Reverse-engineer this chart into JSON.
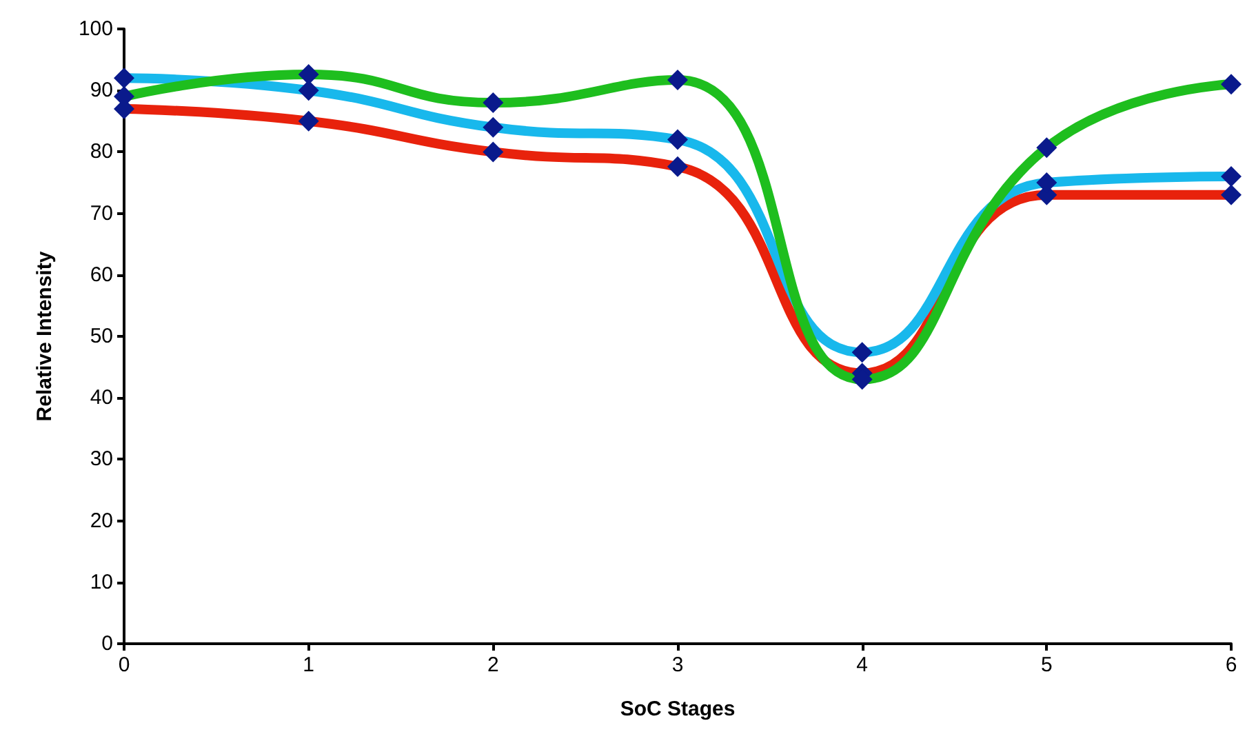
{
  "chart_data": {
    "type": "line",
    "xlabel": "SoC Stages",
    "ylabel": "Relative Intensity",
    "x": [
      0,
      1,
      2,
      3,
      4,
      5,
      6
    ],
    "series": [
      {
        "color": "#e8220c",
        "values": [
          87,
          85,
          80,
          77.6,
          44,
          73,
          73
        ]
      },
      {
        "color": "#18b8ec",
        "values": [
          92,
          90,
          84,
          82,
          47.4,
          75,
          76
        ]
      },
      {
        "color": "#1ebe1e",
        "values": [
          89,
          92.6,
          88,
          91.7,
          43,
          80.7,
          91
        ]
      }
    ],
    "xlim": [
      0,
      6
    ],
    "xticks": [
      0,
      1,
      2,
      3,
      4,
      5,
      6
    ],
    "ylim": [
      0,
      100
    ],
    "yticks": [
      0,
      10,
      20,
      30,
      40,
      50,
      60,
      70,
      80,
      90,
      100
    ],
    "grid": false,
    "marker": "diamond",
    "line_style": "solid"
  }
}
